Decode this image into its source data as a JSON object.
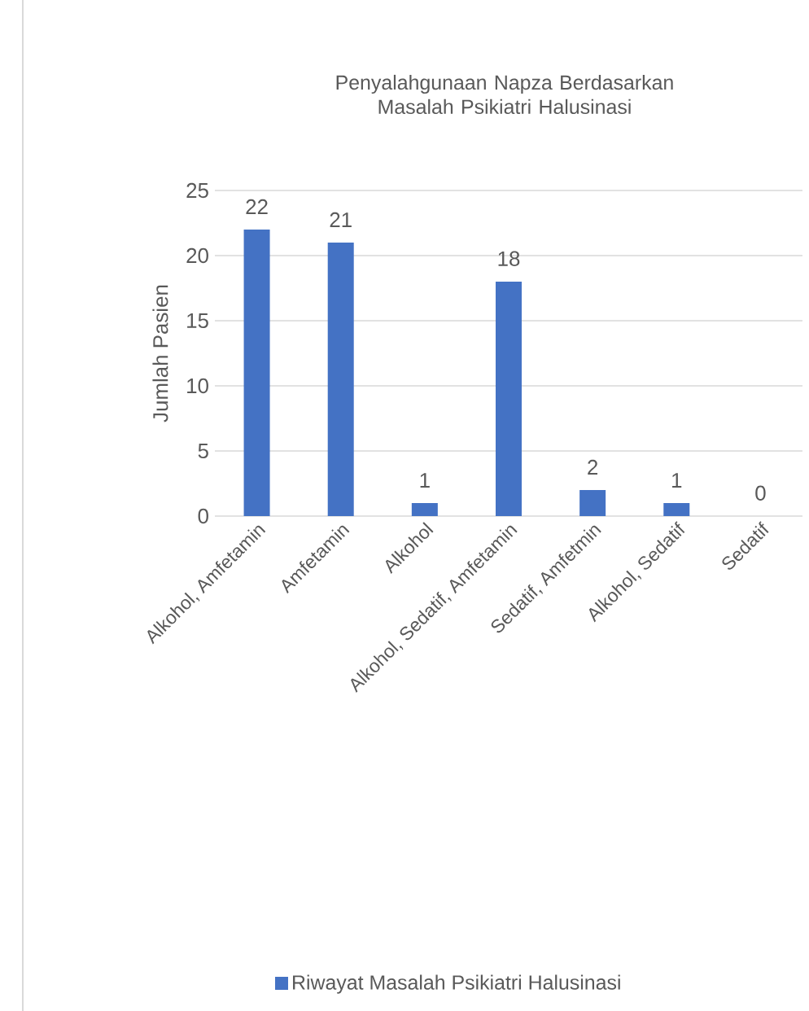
{
  "chart_data": {
    "type": "bar",
    "title": "Penyalahgunaan Napza Berdasarkan Masalah Psikiatri Halusinasi",
    "ylabel": "Jumlah Pasien",
    "categories": [
      "Alkohol, Amfetamin",
      "Amfetamin",
      "Alkohol",
      "Alkohol, Sedatif, Amfetamin",
      "Sedatif, Amfetmin",
      "Alkohol, Sedatif",
      "Sedatif"
    ],
    "series": [
      {
        "name": "Riwayat Masalah Psikiatri Halusinasi",
        "color": "#4472c4",
        "values": [
          22,
          21,
          1,
          18,
          2,
          1,
          0
        ]
      }
    ],
    "ylim": [
      0,
      25
    ],
    "yticks": [
      0,
      5,
      10,
      15,
      20,
      25
    ],
    "grid": "y",
    "data_labels": true,
    "legend": "bottom"
  }
}
